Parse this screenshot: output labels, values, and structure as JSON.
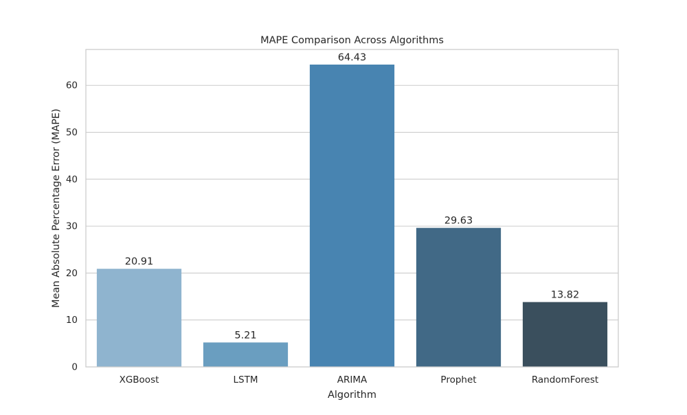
{
  "chart_data": {
    "type": "bar",
    "title": "MAPE Comparison Across Algorithms",
    "xlabel": "Algorithm",
    "ylabel": "Mean Absolute Percentage Error (MAPE)",
    "categories": [
      "XGBoost",
      "LSTM",
      "ARIMA",
      "Prophet",
      "RandomForest"
    ],
    "values": [
      20.91,
      5.21,
      64.43,
      29.63,
      13.82
    ],
    "value_labels": [
      "20.91",
      "5.21",
      "64.43",
      "29.63",
      "13.82"
    ],
    "bar_colors": [
      "#8fb4cf",
      "#6a9ec0",
      "#4884b1",
      "#416986",
      "#3a4f5d"
    ],
    "ylim": [
      0,
      67.65
    ],
    "yticks": [
      0,
      10,
      20,
      30,
      40,
      50,
      60
    ],
    "ytick_labels": [
      "0",
      "10",
      "20",
      "30",
      "40",
      "50",
      "60"
    ],
    "grid": "y",
    "legend": "none"
  }
}
